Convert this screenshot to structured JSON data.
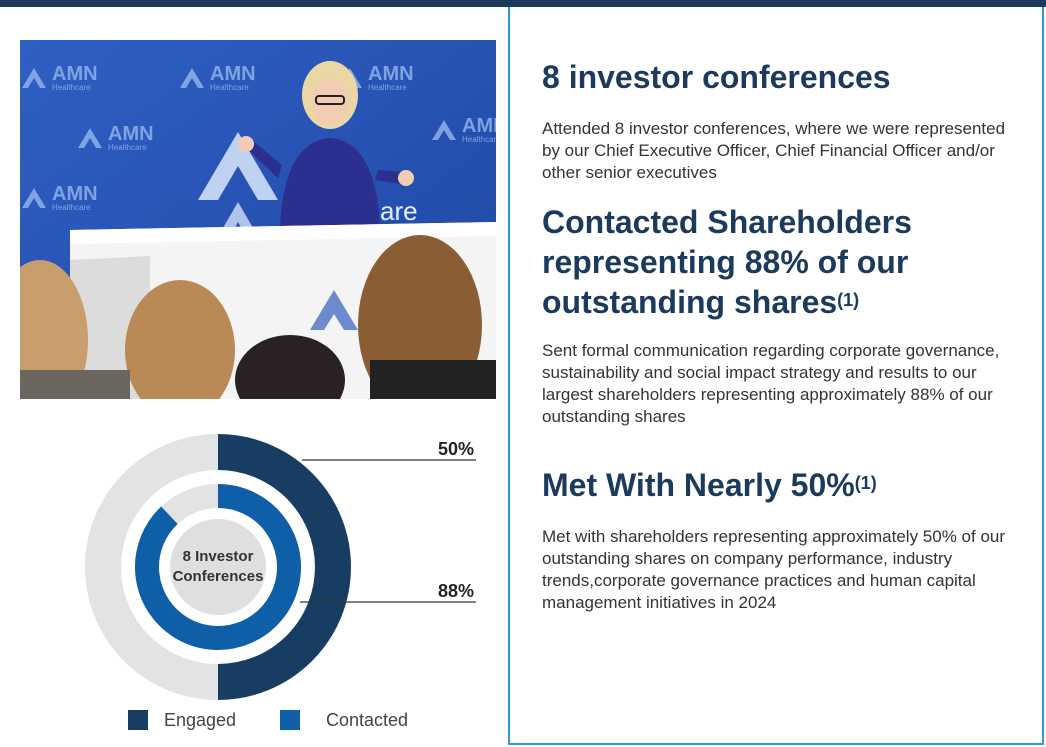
{
  "photo": {
    "logo_text": "AMN",
    "logo_subtext": "Healthcare",
    "backdrop_partial_text": "are"
  },
  "chart_data": {
    "type": "ring",
    "center_label": [
      "8 Investor",
      "Conferences"
    ],
    "rings": [
      {
        "name": "Engaged",
        "value": 50,
        "label": "50%",
        "color": "#173d63"
      },
      {
        "name": "Contacted",
        "value": 88,
        "label": "88%",
        "color": "#0e5fa8"
      }
    ],
    "track_color": "#e2e3e5",
    "center_color": "#dedfe1",
    "legend_position": "bottom"
  },
  "sections": [
    {
      "title": "8 investor conferences",
      "title_sup": "",
      "body": "Attended 8 investor conferences, where we were represented by our Chief Executive Officer, Chief Financial Officer and/or other senior executives"
    },
    {
      "title_lines": [
        "Contacted Shareholders",
        "representing 88% of our",
        "outstanding shares"
      ],
      "title_sup": "(1)",
      "body": "Sent formal communication regarding corporate governance, sustainability and social impact strategy and results to our largest shareholders representing approximately 88% of our outstanding shares"
    },
    {
      "title": "Met With Nearly 50%",
      "title_sup": "(1)",
      "body": "Met with shareholders representing approximately 50% of our outstanding shares on company performance, industry trends,corporate governance practices and human capital management initiatives in 2024"
    }
  ]
}
